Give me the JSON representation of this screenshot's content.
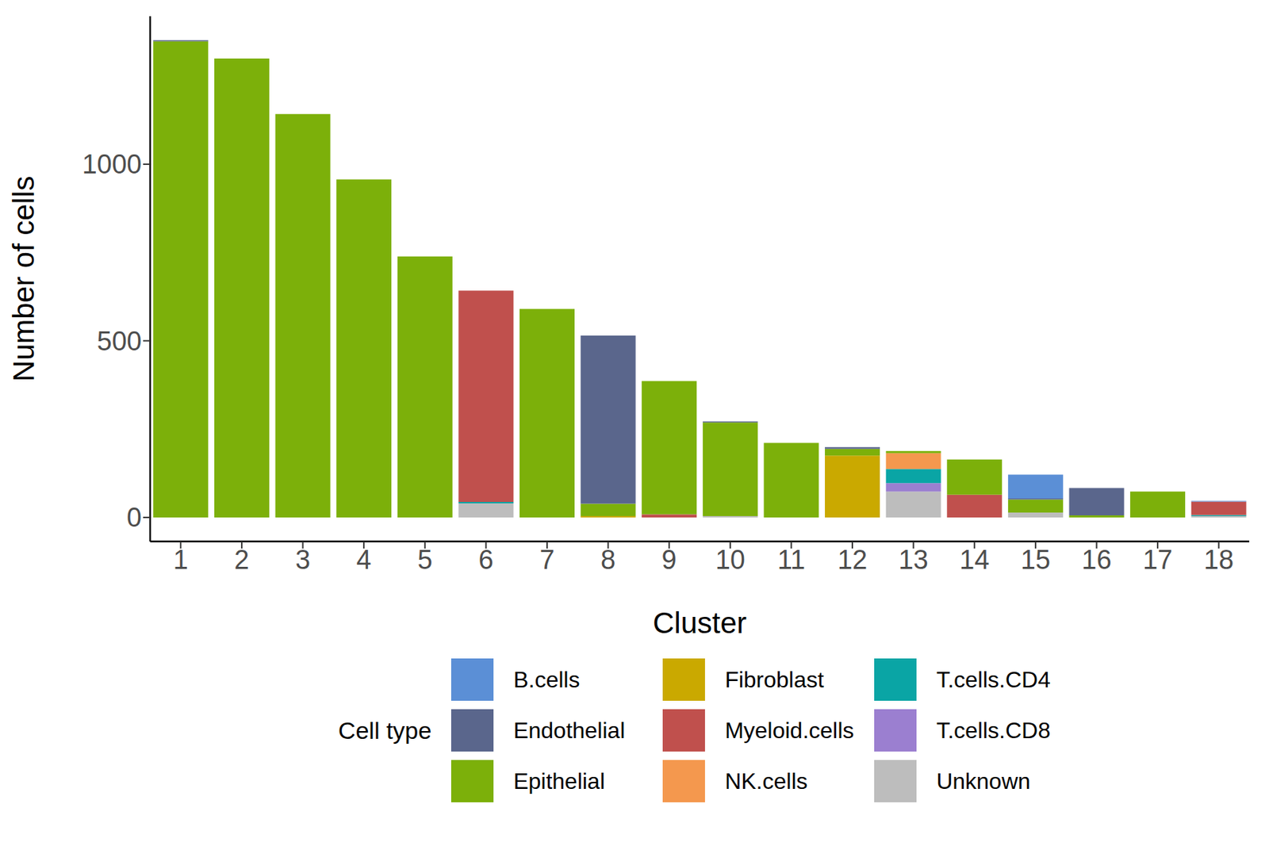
{
  "chart_data": {
    "type": "bar",
    "stacked": true,
    "x_label": "Cluster",
    "y_label": "Number of cells",
    "legend": "bottom",
    "legend_title": "Cell type",
    "categories": [
      "1",
      "2",
      "3",
      "4",
      "5",
      "6",
      "7",
      "8",
      "9",
      "10",
      "11",
      "12",
      "13",
      "14",
      "15",
      "16",
      "17",
      "18"
    ],
    "ylim": [
      -68,
      1419
    ],
    "yticks": [
      0,
      500,
      1000
    ],
    "series": [
      {
        "name": "B.cells",
        "color": "#5B8FD6",
        "values": [
          0,
          0,
          0,
          0,
          0,
          0,
          0,
          0,
          0,
          0,
          0,
          0,
          0,
          0,
          67,
          0,
          0,
          2
        ]
      },
      {
        "name": "Endothelial",
        "color": "#5A668C",
        "values": [
          3,
          0,
          0,
          0,
          0,
          0,
          0,
          476,
          0,
          3,
          0,
          5,
          0,
          0,
          3,
          77,
          0,
          0
        ]
      },
      {
        "name": "Epithelial",
        "color": "#7CB00A",
        "values": [
          1348,
          1299,
          1142,
          957,
          739,
          0,
          590,
          35,
          377,
          265,
          211,
          19,
          6,
          100,
          37,
          6,
          73,
          0
        ]
      },
      {
        "name": "Fibroblast",
        "color": "#CAA900",
        "values": [
          0,
          0,
          0,
          0,
          0,
          0,
          0,
          4,
          0,
          0,
          0,
          175,
          0,
          0,
          0,
          0,
          0,
          0
        ]
      },
      {
        "name": "Myeloid.cells",
        "color": "#C0504D",
        "values": [
          0,
          0,
          0,
          0,
          0,
          598,
          0,
          0,
          9,
          0,
          0,
          0,
          0,
          64,
          0,
          0,
          0,
          38
        ]
      },
      {
        "name": "NK.cells",
        "color": "#F4984E",
        "values": [
          0,
          0,
          0,
          0,
          0,
          0,
          0,
          0,
          0,
          0,
          0,
          0,
          45,
          0,
          0,
          0,
          0,
          0
        ]
      },
      {
        "name": "T.cells.CD4",
        "color": "#0AA5A5",
        "values": [
          0,
          0,
          0,
          0,
          0,
          4,
          0,
          0,
          0,
          0,
          0,
          0,
          40,
          0,
          0,
          0,
          0,
          3
        ]
      },
      {
        "name": "T.cells.CD8",
        "color": "#9B7FD0",
        "values": [
          0,
          0,
          0,
          0,
          0,
          0,
          0,
          0,
          0,
          0,
          0,
          0,
          24,
          0,
          0,
          0,
          0,
          0
        ]
      },
      {
        "name": "Unknown",
        "color": "#BDBDBD",
        "values": [
          0,
          0,
          0,
          0,
          0,
          40,
          0,
          0,
          0,
          4,
          0,
          0,
          73,
          0,
          14,
          0,
          0,
          4
        ]
      }
    ]
  }
}
